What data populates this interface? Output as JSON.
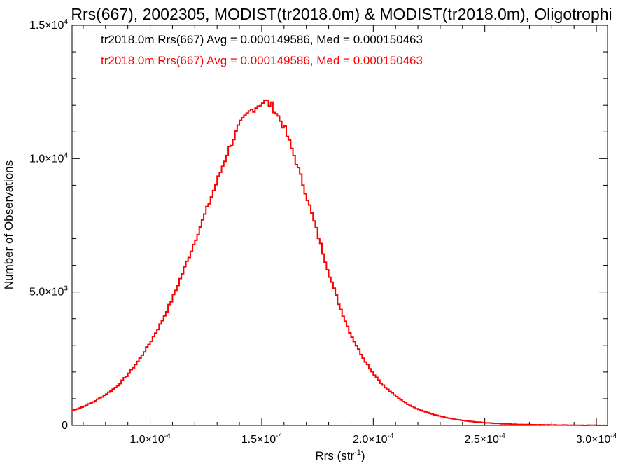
{
  "chart_data": {
    "type": "line",
    "title": "Rrs(667), 2002305, MODIST(tr2018.0m) & MODIST(tr2018.0m), Oligotrophi",
    "xlabel_main": "Rrs (str",
    "xlabel_exp": "-1",
    "xlabel_end": ")",
    "ylabel": "Number of Observations",
    "xlim": [
      6.5e-05,
      0.000305
    ],
    "ylim": [
      0,
      15000
    ],
    "x_ticks": [
      {
        "value": 0.0001,
        "mantissa": "1.0×10",
        "exp": "-4"
      },
      {
        "value": 0.00015,
        "mantissa": "1.5×10",
        "exp": "-4"
      },
      {
        "value": 0.0002,
        "mantissa": "2.0×10",
        "exp": "-4"
      },
      {
        "value": 0.00025,
        "mantissa": "2.5×10",
        "exp": "-4"
      },
      {
        "value": 0.0003,
        "mantissa": "3.0×10",
        "exp": "-4"
      }
    ],
    "y_ticks": [
      {
        "value": 0,
        "mantissa": "0",
        "exp": ""
      },
      {
        "value": 5000,
        "mantissa": "5.0×10",
        "exp": "3"
      },
      {
        "value": 10000,
        "mantissa": "1.0×10",
        "exp": "4"
      },
      {
        "value": 15000,
        "mantissa": "1.5×10",
        "exp": "4"
      }
    ],
    "annotations": [
      {
        "text": "tr2018.0m Rrs(667) Avg = 0.000149586, Med = 0.000150463",
        "color": "#000000"
      },
      {
        "text": "tr2018.0m Rrs(667) Avg = 0.000149586, Med = 0.000150463",
        "color": "#ff0000"
      }
    ],
    "series": [
      {
        "color": "#ff0000",
        "step": true,
        "x": [
          6.5e-05,
          7e-05,
          7.5e-05,
          8e-05,
          8.5e-05,
          9e-05,
          9.5e-05,
          0.0001,
          0.000105,
          0.00011,
          0.000115,
          0.00012,
          0.000125,
          0.00013,
          0.000135,
          0.00014,
          0.000145,
          0.00015,
          0.000152,
          0.000155,
          0.00016,
          0.000165,
          0.00017,
          0.000175,
          0.00018,
          0.000185,
          0.00019,
          0.000195,
          0.0002,
          0.000205,
          0.00021,
          0.000215,
          0.00022,
          0.000225,
          0.00023,
          0.000235,
          0.00024,
          0.000245,
          0.00025,
          0.000255,
          0.00026,
          0.000265,
          0.00027,
          0.000275,
          0.00028,
          0.000285,
          0.00029,
          0.000295,
          0.0003,
          0.000305
        ],
        "y": [
          550,
          700,
          900,
          1150,
          1450,
          1900,
          2450,
          3100,
          3850,
          4750,
          5800,
          6900,
          8000,
          9150,
          10300,
          11250,
          11800,
          12100,
          12150,
          11950,
          11200,
          10000,
          8650,
          7200,
          5750,
          4450,
          3400,
          2600,
          1950,
          1450,
          1100,
          820,
          610,
          460,
          340,
          250,
          185,
          135,
          100,
          75,
          55,
          40,
          30,
          22,
          16,
          12,
          9,
          7,
          5,
          4
        ]
      }
    ]
  }
}
